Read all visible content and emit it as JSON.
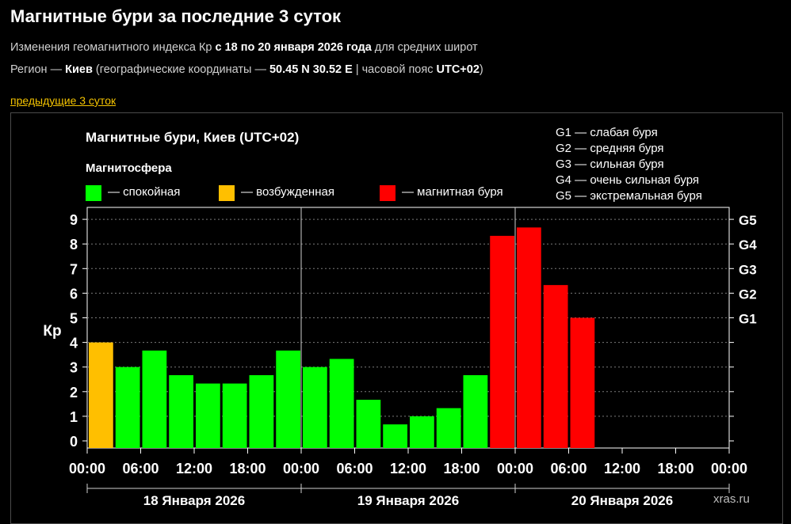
{
  "header": {
    "title": "Магнитные бури за последние 3 суток",
    "line1_pre": "Изменения геомагнитного индекса Кр ",
    "line1_bold": "с 18 по 20 января 2026 года",
    "line1_post": " для средних широт",
    "line2_pre": "Регион — ",
    "line2_city": "Киев",
    "line2_mid": " (географические координаты — ",
    "line2_coords": "50.45 N 30.52 E",
    "line2_mid2": " | часовой пояс ",
    "line2_tz": "UTC+02",
    "line2_post": ")",
    "prev_link": "предыдущие 3 суток"
  },
  "legend": {
    "magnetosphere": "Магнитосфера",
    "calm": "— спокойная",
    "excited": "— возбужденная",
    "storm": "— магнитная буря",
    "g1": "G1 — слабая буря",
    "g2": "G2 — средняя буря",
    "g3": "G3 — сильная буря",
    "g4": "G4 — очень сильная буря",
    "g5": "G5 — экстремальная буря"
  },
  "colors": {
    "calm": "#00ff00",
    "excited": "#ffbf00",
    "storm": "#ff0000",
    "background": "#000000"
  },
  "watermark": "xras.ru",
  "chart_data": {
    "type": "bar",
    "title": "Магнитные бури, Киев (UTC+02)",
    "ylabel": "Кр",
    "ylim": [
      0,
      9
    ],
    "yticks": [
      "0",
      "1",
      "2",
      "3",
      "4",
      "5",
      "6",
      "7",
      "8",
      "9"
    ],
    "right_ticks": [
      {
        "level": 5,
        "label": "G1"
      },
      {
        "level": 6,
        "label": "G2"
      },
      {
        "level": 7,
        "label": "G3"
      },
      {
        "level": 8,
        "label": "G4"
      },
      {
        "level": 9,
        "label": "G5"
      }
    ],
    "xtick_labels": [
      "00:00",
      "06:00",
      "12:00",
      "18:00",
      "00:00",
      "06:00",
      "12:00",
      "18:00",
      "00:00",
      "06:00",
      "12:00",
      "18:00",
      "00:00"
    ],
    "days": [
      "18 Января 2026",
      "19 Января 2026",
      "20 Января 2026"
    ],
    "values": [
      4.0,
      3.0,
      3.67,
      2.67,
      2.33,
      2.33,
      2.67,
      3.67,
      3.0,
      3.33,
      1.67,
      0.67,
      1.0,
      1.33,
      2.67,
      8.33,
      8.67,
      6.33,
      5.0
    ],
    "status": [
      "excited",
      "calm",
      "calm",
      "calm",
      "calm",
      "calm",
      "calm",
      "calm",
      "calm",
      "calm",
      "calm",
      "calm",
      "calm",
      "calm",
      "calm",
      "storm",
      "storm",
      "storm",
      "storm"
    ],
    "grid": true
  }
}
